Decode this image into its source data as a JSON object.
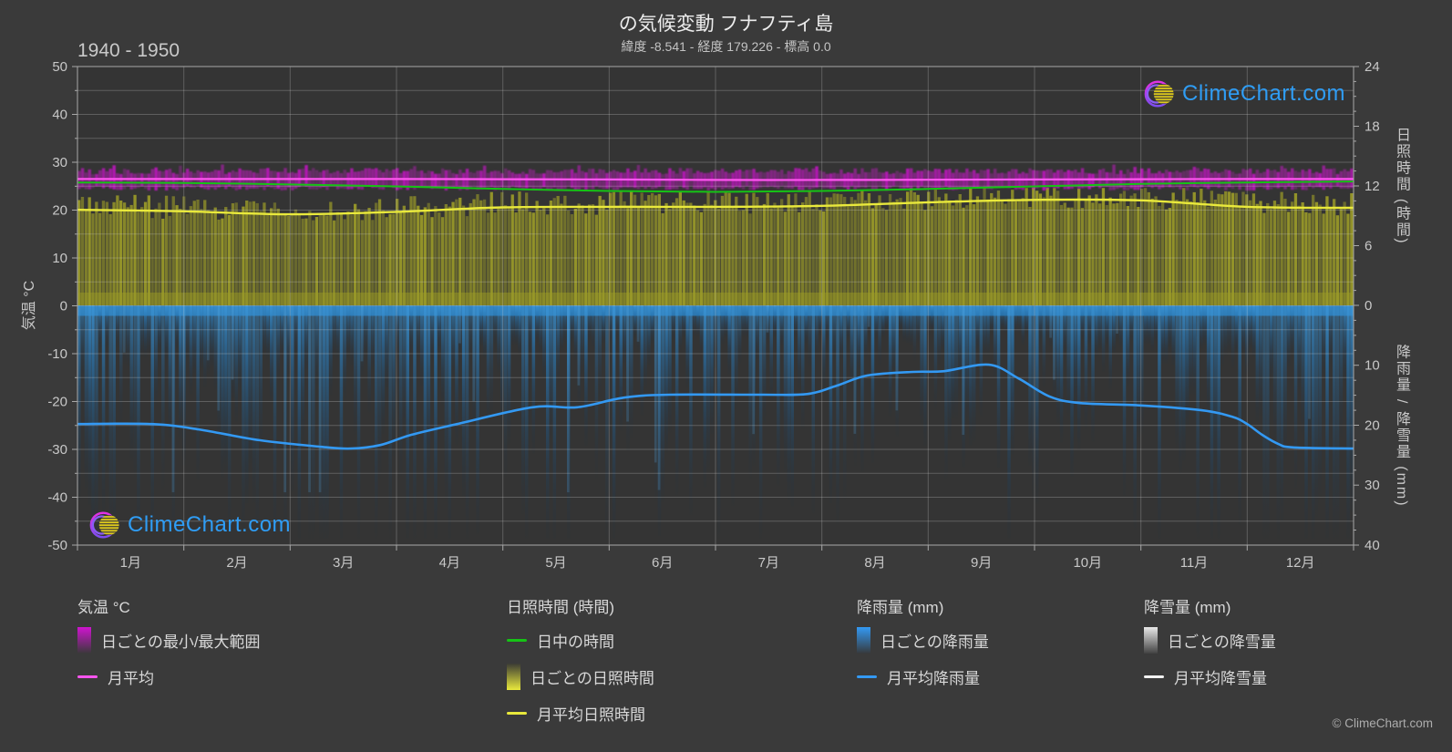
{
  "header": {
    "title": "の気候変動 フナフティ島",
    "subtitle": "緯度 -8.541 - 経度 179.226 - 標高 0.0",
    "period": "1940 - 1950"
  },
  "watermark": {
    "text": "ClimeChart.com"
  },
  "footer": {
    "copyright": "© ClimeChart.com"
  },
  "axes": {
    "temp": {
      "label": "気温 °C",
      "min": -50,
      "max": 50,
      "tick_step": 10
    },
    "sun": {
      "label": "日照時間 (時間)",
      "min": 0,
      "max": 24,
      "ticks": [
        0,
        6,
        12,
        18,
        24
      ]
    },
    "precip": {
      "label": "降雨量 / 降雪量 (mm)",
      "min": 0,
      "max": 40,
      "ticks": [
        0,
        10,
        20,
        30,
        40
      ],
      "direction": "down"
    }
  },
  "colors": {
    "page_bg": "#3a3a3a",
    "plot_bg": "#343434",
    "grid": "rgba(220,220,220,0.26)",
    "axis": "#a8a8a8",
    "temp_band": "#cf14cf",
    "temp_mean_line": "#ff55f0",
    "daylight_line": "#15c315",
    "sunshine_fill": "#9c9c28",
    "sunshine_mean_line": "#e9e93c",
    "rain_fill": "#2a80c2",
    "rain_mean_line": "#3399f3",
    "snow_fill": "#e8e8e8",
    "snow_mean_line": "#f2f2f2",
    "logo_text": "#2f9df5"
  },
  "legend": {
    "groups": [
      {
        "title": "気温 °C",
        "items": [
          {
            "swatch": "grad-magenta",
            "label": "日ごとの最小/最大範囲"
          },
          {
            "swatch": "line-magenta",
            "label": "月平均"
          }
        ]
      },
      {
        "title": "日照時間 (時間)",
        "items": [
          {
            "swatch": "line-green",
            "label": "日中の時間"
          },
          {
            "swatch": "grad-yellow",
            "label": "日ごとの日照時間"
          },
          {
            "swatch": "line-yellow",
            "label": "月平均日照時間"
          }
        ]
      },
      {
        "title": "降雨量 (mm)",
        "items": [
          {
            "swatch": "grad-blue",
            "label": "日ごとの降雨量"
          },
          {
            "swatch": "line-blue",
            "label": "月平均降雨量"
          }
        ]
      },
      {
        "title": "降雪量 (mm)",
        "items": [
          {
            "swatch": "grad-white",
            "label": "日ごとの降雪量"
          },
          {
            "swatch": "line-white",
            "label": "月平均降雪量"
          }
        ]
      }
    ]
  },
  "chart_data": {
    "type": "line",
    "title": "の気候変動 フナフティ島",
    "subtitle": "緯度 -8.541 - 経度 179.226 - 標高 0.0",
    "period": "1940 - 1950",
    "x_months": [
      "1月",
      "2月",
      "3月",
      "4月",
      "5月",
      "6月",
      "7月",
      "8月",
      "9月",
      "10月",
      "11月",
      "12月"
    ],
    "axis_ranges": {
      "temp_c": [
        -50,
        50
      ],
      "sunshine_h": [
        0,
        24
      ],
      "precip_mm_down": [
        0,
        40
      ]
    },
    "grid": true,
    "legend_position": "bottom",
    "series": [
      {
        "name": "日ごとの最小/最大範囲",
        "axis": "temp",
        "render": "daily-band",
        "band_min_c": 24.9,
        "band_max_c": 28.6
      },
      {
        "name": "月平均",
        "axis": "temp",
        "render": "line",
        "monthly": [
          26.5,
          26.5,
          26.5,
          26.5,
          26.45,
          26.4,
          26.3,
          26.3,
          26.35,
          26.4,
          26.45,
          26.5,
          26.5
        ]
      },
      {
        "name": "日中の時間",
        "axis": "sun",
        "render": "line",
        "monthly": [
          12.35,
          12.3,
          12.15,
          11.95,
          11.7,
          11.5,
          11.4,
          11.5,
          11.7,
          11.95,
          12.2,
          12.35,
          12.45
        ]
      },
      {
        "name": "日ごとの日照時間",
        "axis": "sun",
        "render": "daily-area-up",
        "typical_hours": [
          9.6,
          9.45,
          9.15,
          9.4,
          9.85,
          9.9,
          9.9,
          10.0,
          10.35,
          10.6,
          10.55,
          9.9,
          9.8
        ]
      },
      {
        "name": "月平均日照時間",
        "axis": "sun",
        "render": "line",
        "monthly": [
          9.6,
          9.45,
          9.15,
          9.4,
          9.85,
          9.9,
          9.9,
          10.0,
          10.35,
          10.6,
          10.55,
          9.9,
          9.8
        ]
      },
      {
        "name": "日ごとの降雨量",
        "axis": "precip",
        "render": "daily-area-down"
      },
      {
        "name": "月平均降雨量",
        "axis": "precip",
        "render": "line",
        "points_month_mm": [
          [
            0,
            19.8
          ],
          [
            0.7,
            19.8
          ],
          [
            1.14,
            20.7
          ],
          [
            1.71,
            22.5
          ],
          [
            2.29,
            23.6
          ],
          [
            2.57,
            23.9
          ],
          [
            2.85,
            23.3
          ],
          [
            3.14,
            21.6
          ],
          [
            3.57,
            19.8
          ],
          [
            4.28,
            17.0
          ],
          [
            4.7,
            17.0
          ],
          [
            5.14,
            15.4
          ],
          [
            5.57,
            14.9
          ],
          [
            6.43,
            14.9
          ],
          [
            6.86,
            14.8
          ],
          [
            7.14,
            13.4
          ],
          [
            7.43,
            11.7
          ],
          [
            7.86,
            11.1
          ],
          [
            8.14,
            11.0
          ],
          [
            8.57,
            9.9
          ],
          [
            8.85,
            12.2
          ],
          [
            9.14,
            15.2
          ],
          [
            9.43,
            16.3
          ],
          [
            10.0,
            16.7
          ],
          [
            10.57,
            17.5
          ],
          [
            10.86,
            18.6
          ],
          [
            11.0,
            19.8
          ],
          [
            11.14,
            21.6
          ],
          [
            11.29,
            23.1
          ],
          [
            11.43,
            23.7
          ],
          [
            12,
            23.9
          ]
        ]
      },
      {
        "name": "日ごとの降雪量",
        "axis": "precip",
        "render": "daily-area-down",
        "note": "no snow visible (0 mm)"
      },
      {
        "name": "月平均降雪量",
        "axis": "precip",
        "render": "line",
        "monthly": [
          0,
          0,
          0,
          0,
          0,
          0,
          0,
          0,
          0,
          0,
          0,
          0,
          0
        ]
      }
    ]
  }
}
